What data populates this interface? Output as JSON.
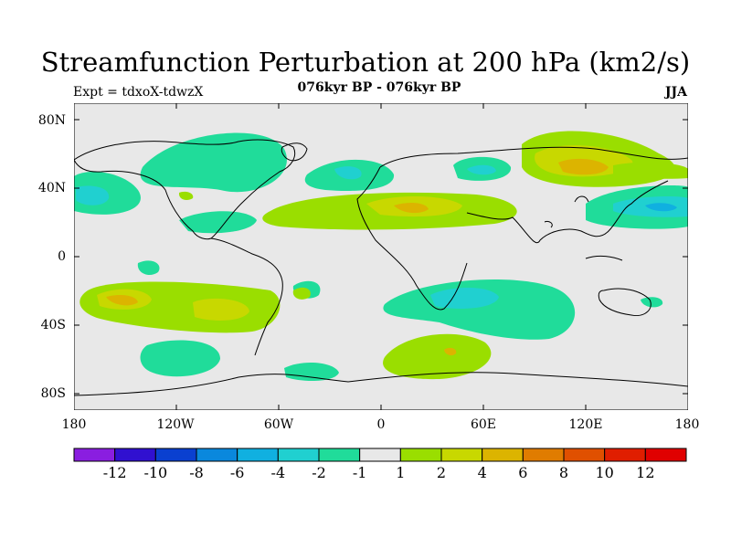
{
  "header": {
    "title": "Streamfunction Perturbation at 200 hPa (km2/s)",
    "subtitle": "076kyr BP - 076kyr BP",
    "expt": "Expt = tdxoX-tdwzX",
    "season": "JJA"
  },
  "axes": {
    "lat_labels": [
      "80N",
      "40N",
      "0",
      "40S",
      "80S"
    ],
    "lon_labels": [
      "180",
      "120W",
      "60W",
      "0",
      "60E",
      "120E",
      "180"
    ]
  },
  "colorbar": {
    "labels": [
      "-12",
      "-10",
      "-8",
      "-6",
      "-4",
      "-2",
      "-1",
      "1",
      "2",
      "4",
      "6",
      "8",
      "10",
      "12"
    ],
    "colors": [
      "#8a1ee0",
      "#3010d0",
      "#0a40d0",
      "#0a88dd",
      "#10b0e0",
      "#20d0d0",
      "#20dc9a",
      "#e8e8e8",
      "#9ade00",
      "#c8d800",
      "#dcb400",
      "#e07c00",
      "#e05000",
      "#e01e00",
      "#e00000"
    ]
  },
  "colors": {
    "land_fill": "#e8e8e8",
    "pos1": "#9ade00",
    "pos2": "#c8d800",
    "pos3": "#dcb400",
    "neg1": "#20dc9a",
    "neg2": "#20d0d0"
  }
}
